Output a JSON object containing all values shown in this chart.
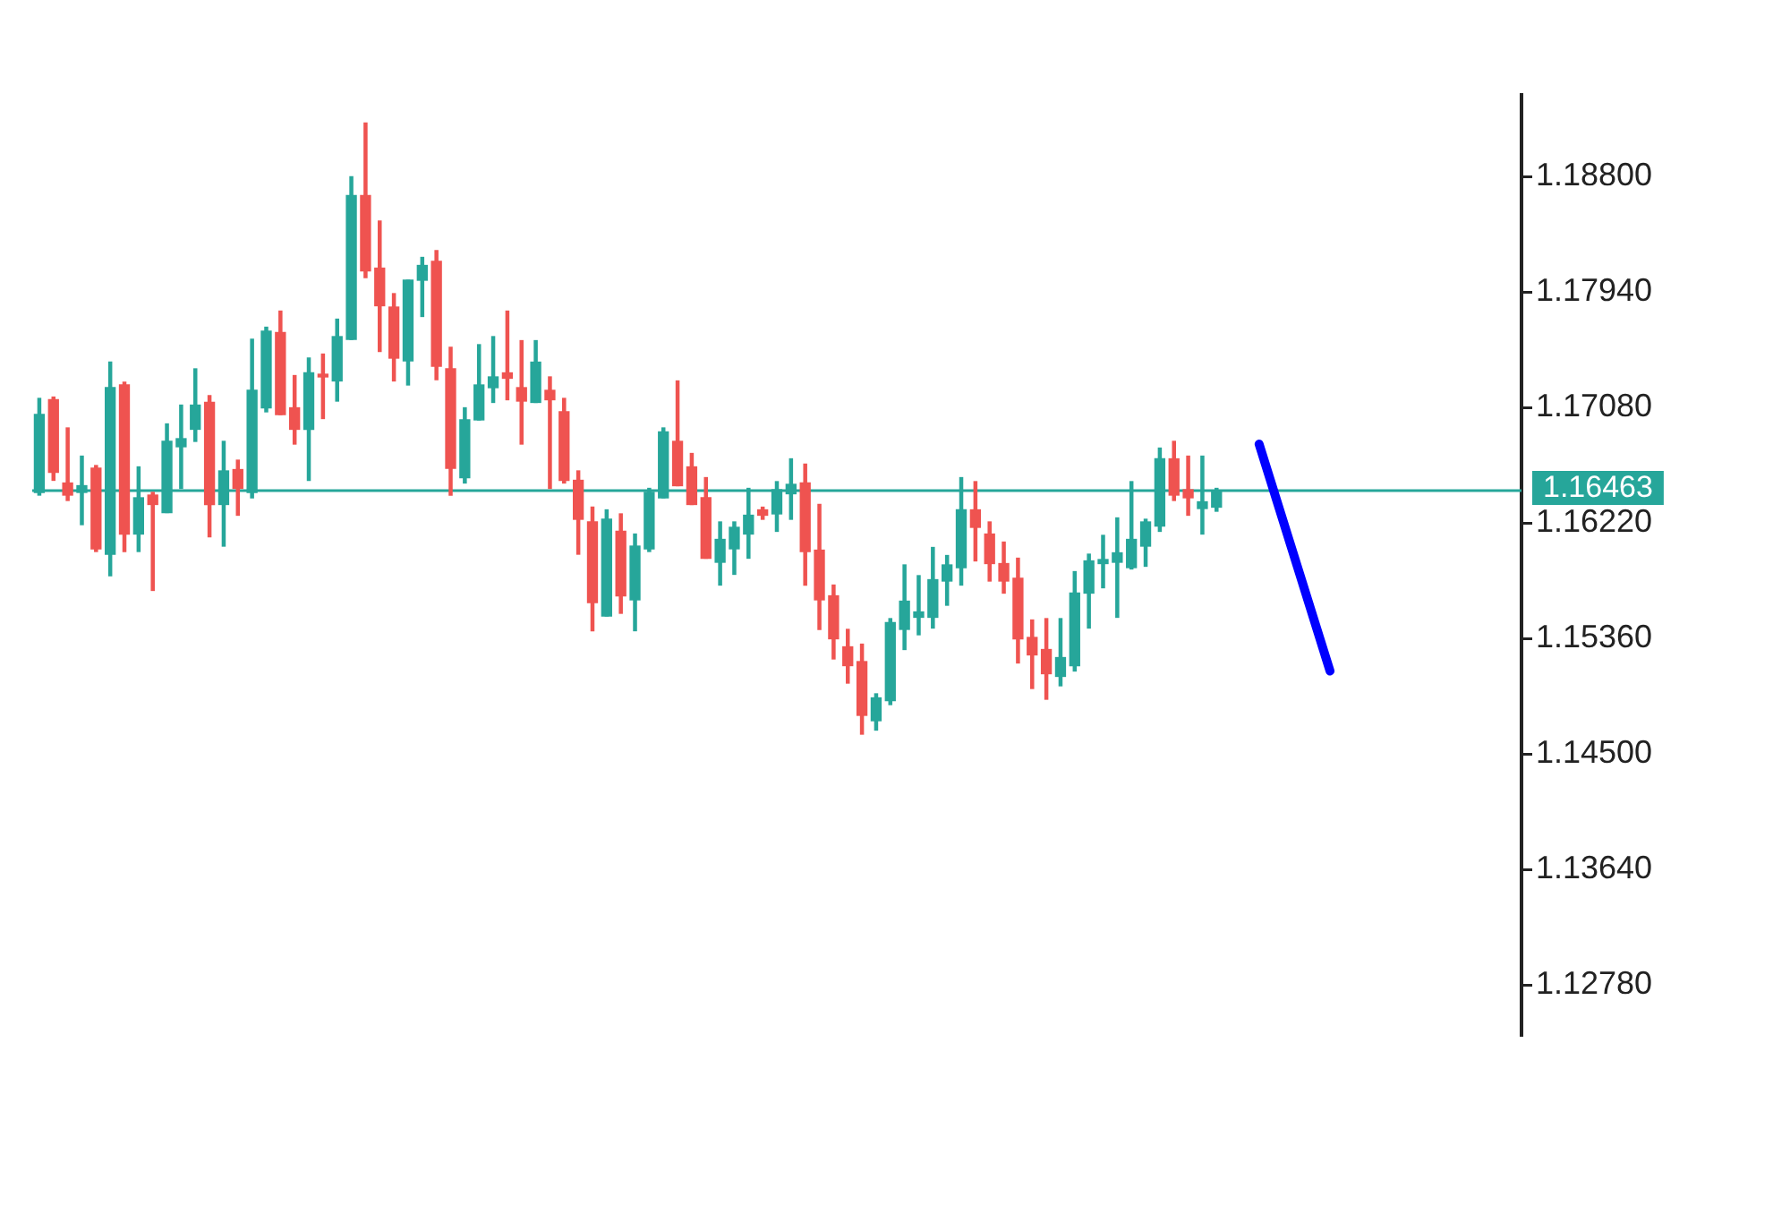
{
  "chart_data": {
    "type": "candlestick",
    "categories": [
      null,
      null,
      null,
      null,
      null,
      null,
      null,
      null,
      null,
      null,
      null,
      null,
      null,
      null,
      null,
      null,
      null,
      null,
      null,
      null,
      null,
      null,
      null,
      null,
      null,
      null,
      null,
      null,
      null,
      null,
      null,
      null,
      null,
      null,
      null,
      null,
      null,
      null,
      null,
      null,
      null,
      null,
      null,
      null,
      null,
      null,
      null,
      null,
      null,
      null,
      null,
      null,
      null,
      null,
      null,
      null,
      null,
      null,
      null,
      null,
      null,
      null,
      null,
      null,
      null,
      null,
      null,
      null,
      null,
      null,
      null,
      null,
      null,
      null,
      null,
      null,
      null,
      null,
      null,
      null,
      null,
      null,
      null,
      null,
      null,
      null,
      null,
      null,
      null,
      null,
      null,
      null,
      null,
      null,
      null,
      null,
      null,
      null,
      null,
      null,
      null,
      null,
      null,
      null,
      null
    ],
    "ohlc": [
      [
        1.1645,
        1.1715,
        1.1643,
        1.1703
      ],
      [
        1.1714,
        1.1716,
        1.1654,
        1.166
      ],
      [
        1.1652,
        1.1693,
        1.1639,
        1.1643
      ],
      [
        1.1645,
        1.1672,
        1.1621,
        1.165
      ],
      [
        1.1663,
        1.1665,
        1.1601,
        1.1603
      ],
      [
        1.1599,
        1.1742,
        1.1583,
        1.1723
      ],
      [
        1.1725,
        1.1727,
        1.1601,
        1.1614
      ],
      [
        1.1614,
        1.1664,
        1.1601,
        1.1641
      ],
      [
        1.1643,
        1.1645,
        1.1572,
        1.1636
      ],
      [
        1.163,
        1.1696,
        1.163,
        1.1683
      ],
      [
        1.1679,
        1.171,
        1.1648,
        1.1685
      ],
      [
        1.1692,
        1.1737,
        1.1683,
        1.171
      ],
      [
        1.1712,
        1.1717,
        1.1612,
        1.1636
      ],
      [
        1.1636,
        1.1683,
        1.1605,
        1.1661
      ],
      [
        1.1662,
        1.1669,
        1.1628,
        1.1648
      ],
      [
        1.1645,
        1.1759,
        1.1641,
        1.1721
      ],
      [
        1.1708,
        1.1768,
        1.1705,
        1.1765
      ],
      [
        1.1764,
        1.178,
        1.1703,
        1.1703
      ],
      [
        1.1708,
        1.1732,
        1.1681,
        1.1692
      ],
      [
        1.1692,
        1.1745,
        1.1654,
        1.1734
      ],
      [
        1.1733,
        1.1748,
        1.17,
        1.1731
      ],
      [
        1.1728,
        1.1774,
        1.1713,
        1.1761
      ],
      [
        1.1759,
        1.188,
        1.1759,
        1.1866
      ],
      [
        1.1866,
        1.192,
        1.1805,
        1.181
      ],
      [
        1.1812,
        1.1847,
        1.175,
        1.1784
      ],
      [
        1.1783,
        1.1793,
        1.1728,
        1.1745
      ],
      [
        1.1743,
        1.1803,
        1.1725,
        1.1803
      ],
      [
        1.1803,
        1.182,
        1.1776,
        1.1814
      ],
      [
        1.1817,
        1.1825,
        1.1729,
        1.1739
      ],
      [
        1.1737,
        1.1753,
        1.1643,
        1.1663
      ],
      [
        1.1656,
        1.1708,
        1.1652,
        1.1699
      ],
      [
        1.1699,
        1.1755,
        1.1699,
        1.1725
      ],
      [
        1.1723,
        1.1761,
        1.1712,
        1.1731
      ],
      [
        1.1734,
        1.178,
        1.1714,
        1.173
      ],
      [
        1.1723,
        1.1758,
        1.1681,
        1.1713
      ],
      [
        1.1712,
        1.1758,
        1.1712,
        1.1742
      ],
      [
        1.1721,
        1.1731,
        1.1648,
        1.1714
      ],
      [
        1.1705,
        1.1715,
        1.1652,
        1.1654
      ],
      [
        1.1654,
        1.1661,
        1.1599,
        1.1625
      ],
      [
        1.1623,
        1.1634,
        1.1542,
        1.1563
      ],
      [
        1.1553,
        1.1632,
        1.1553,
        1.1625
      ],
      [
        1.1616,
        1.1629,
        1.1555,
        1.1568
      ],
      [
        1.1565,
        1.1614,
        1.1542,
        1.1605
      ],
      [
        1.1603,
        1.1648,
        1.1601,
        1.1645
      ],
      [
        1.1641,
        1.1693,
        1.1641,
        1.169
      ],
      [
        1.1683,
        1.1728,
        1.165,
        1.165
      ],
      [
        1.1664,
        1.1674,
        1.1636,
        1.1636
      ],
      [
        1.1641,
        1.1656,
        1.1596,
        1.1596
      ],
      [
        1.1593,
        1.1623,
        1.1576,
        1.161
      ],
      [
        1.1603,
        1.1623,
        1.1584,
        1.1619
      ],
      [
        1.1614,
        1.1648,
        1.1596,
        1.1628
      ],
      [
        1.1632,
        1.1634,
        1.1625,
        1.1628
      ],
      [
        1.1629,
        1.1653,
        1.1616,
        1.1647
      ],
      [
        1.1644,
        1.167,
        1.1625,
        1.1651
      ],
      [
        1.1652,
        1.1666,
        1.1576,
        1.1601
      ],
      [
        1.1602,
        1.1636,
        1.1543,
        1.1565
      ],
      [
        1.1568,
        1.1576,
        1.1521,
        1.1536
      ],
      [
        1.153,
        1.1543,
        1.1503,
        1.1516
      ],
      [
        1.1519,
        1.1532,
        1.1465,
        1.1479
      ],
      [
        1.1475,
        1.1495,
        1.1468,
        1.1492
      ],
      [
        1.149,
        1.1551,
        1.1487,
        1.1548
      ],
      [
        1.1543,
        1.1591,
        1.1528,
        1.1564
      ],
      [
        1.1552,
        1.1583,
        1.1539,
        1.1556
      ],
      [
        1.1552,
        1.1604,
        1.1544,
        1.158
      ],
      [
        1.1579,
        1.1598,
        1.1561,
        1.1591
      ],
      [
        1.1589,
        1.1656,
        1.1576,
        1.1632
      ],
      [
        1.1632,
        1.1653,
        1.1594,
        1.1619
      ],
      [
        1.1614,
        1.1623,
        1.1579,
        1.1592
      ],
      [
        1.1592,
        1.1608,
        1.157,
        1.1579
      ],
      [
        1.1581,
        1.1596,
        1.1518,
        1.1536
      ],
      [
        1.1537,
        1.155,
        1.1499,
        1.1524
      ],
      [
        1.1528,
        1.1551,
        1.1491,
        1.151
      ],
      [
        1.1508,
        1.1551,
        1.1501,
        1.1522
      ],
      [
        1.1516,
        1.1586,
        1.1512,
        1.157
      ],
      [
        1.157,
        1.1599,
        1.1544,
        1.1594
      ],
      [
        1.1592,
        1.1613,
        1.1574,
        1.1595
      ],
      [
        1.1593,
        1.1626,
        1.1552,
        1.16
      ],
      [
        1.1589,
        1.1653,
        1.1588,
        1.161
      ],
      [
        1.1605,
        1.1625,
        1.159,
        1.1623
      ],
      [
        1.162,
        1.1678,
        1.1616,
        1.167
      ],
      [
        1.167,
        1.1683,
        1.1639,
        1.1643
      ],
      [
        1.1647,
        1.1672,
        1.1628,
        1.1641
      ],
      [
        1.1633,
        1.1672,
        1.1614,
        1.1638
      ],
      [
        1.1634,
        1.1648,
        1.1631,
        1.16463
      ],
      null,
      null,
      null,
      null,
      null,
      null,
      null,
      null,
      null,
      null,
      null,
      null,
      null,
      null,
      null,
      null,
      null,
      null,
      null,
      null,
      null
    ],
    "colors": [
      "#26a69a",
      "#ef5350",
      "#ef5350",
      "#26a69a",
      "#ef5350",
      "#26a69a",
      "#ef5350",
      "#26a69a",
      "#ef5350",
      "#26a69a",
      "#26a69a",
      "#26a69a",
      "#ef5350",
      "#26a69a",
      "#ef5350",
      "#26a69a",
      "#26a69a",
      "#ef5350",
      "#ef5350",
      "#26a69a",
      "#ef5350",
      "#26a69a",
      "#26a69a",
      "#ef5350",
      "#ef5350",
      "#ef5350",
      "#26a69a",
      "#26a69a",
      "#ef5350",
      "#ef5350",
      "#26a69a",
      "#26a69a",
      "#26a69a",
      "#ef5350",
      "#ef5350",
      "#26a69a",
      "#ef5350",
      "#ef5350",
      "#ef5350",
      "#ef5350",
      "#26a69a",
      "#ef5350",
      "#26a69a",
      "#26a69a",
      "#26a69a",
      "#ef5350",
      "#ef5350",
      "#ef5350",
      "#26a69a",
      "#26a69a",
      "#26a69a",
      "#ef5350",
      "#26a69a",
      "#26a69a",
      "#ef5350",
      "#ef5350",
      "#ef5350",
      "#ef5350",
      "#ef5350",
      "#26a69a",
      "#26a69a",
      "#26a69a",
      "#26a69a",
      "#26a69a",
      "#26a69a",
      "#26a69a",
      "#ef5350",
      "#ef5350",
      "#ef5350",
      "#ef5350",
      "#ef5350",
      "#ef5350",
      "#26a69a",
      "#26a69a",
      "#26a69a",
      "#26a69a",
      "#26a69a",
      "#26a69a",
      "#26a69a",
      "#26a69a",
      "#ef5350",
      "#ef5350",
      "#26a69a",
      "#26a69a",
      null,
      null,
      null,
      null,
      null,
      null,
      null,
      null,
      null,
      null,
      null,
      null,
      null,
      null,
      null,
      null,
      null,
      null,
      null,
      null,
      null
    ],
    "series": [
      {
        "type": "line",
        "color": "#0000ff",
        "values": [
          null,
          null,
          null,
          null,
          null,
          null,
          null,
          null,
          null,
          null,
          null,
          null,
          null,
          null,
          null,
          null,
          null,
          null,
          null,
          null,
          null,
          null,
          null,
          null,
          null,
          null,
          null,
          null,
          null,
          null,
          null,
          null,
          null,
          null,
          null,
          null,
          null,
          null,
          null,
          null,
          null,
          null,
          null,
          null,
          null,
          null,
          null,
          null,
          null,
          null,
          null,
          null,
          null,
          null,
          null,
          null,
          null,
          null,
          null,
          null,
          null,
          null,
          null,
          null,
          null,
          null,
          null,
          null,
          null,
          null,
          null,
          null,
          null,
          null,
          null,
          null,
          null,
          null,
          null,
          null,
          null,
          null,
          null,
          null,
          null,
          null,
          1.1681,
          null,
          null,
          null,
          null,
          1.1512,
          null,
          null,
          null,
          null,
          null,
          null,
          null,
          null,
          null,
          null,
          null,
          null,
          null
        ]
      }
    ],
    "marker": "none",
    "ylim": [
      1.1241,
      1.1941
    ],
    "yticks": [
      {
        "value": 1.1278,
        "label": "1.12780"
      },
      {
        "value": 1.1364,
        "label": "1.13640"
      },
      {
        "value": 1.145,
        "label": "1.14500"
      },
      {
        "value": 1.1536,
        "label": "1.15360"
      },
      {
        "value": 1.1622,
        "label": "1.16220"
      },
      {
        "value": 1.1708,
        "label": "1.17080"
      },
      {
        "value": 1.1794,
        "label": "1.17940"
      },
      {
        "value": 1.188,
        "label": "1.18800"
      }
    ],
    "ref_lines": [
      {
        "axis": "y",
        "value": 1.16463,
        "label": "1.16463",
        "color": "#26a69a"
      }
    ],
    "tick_labels": "y"
  }
}
